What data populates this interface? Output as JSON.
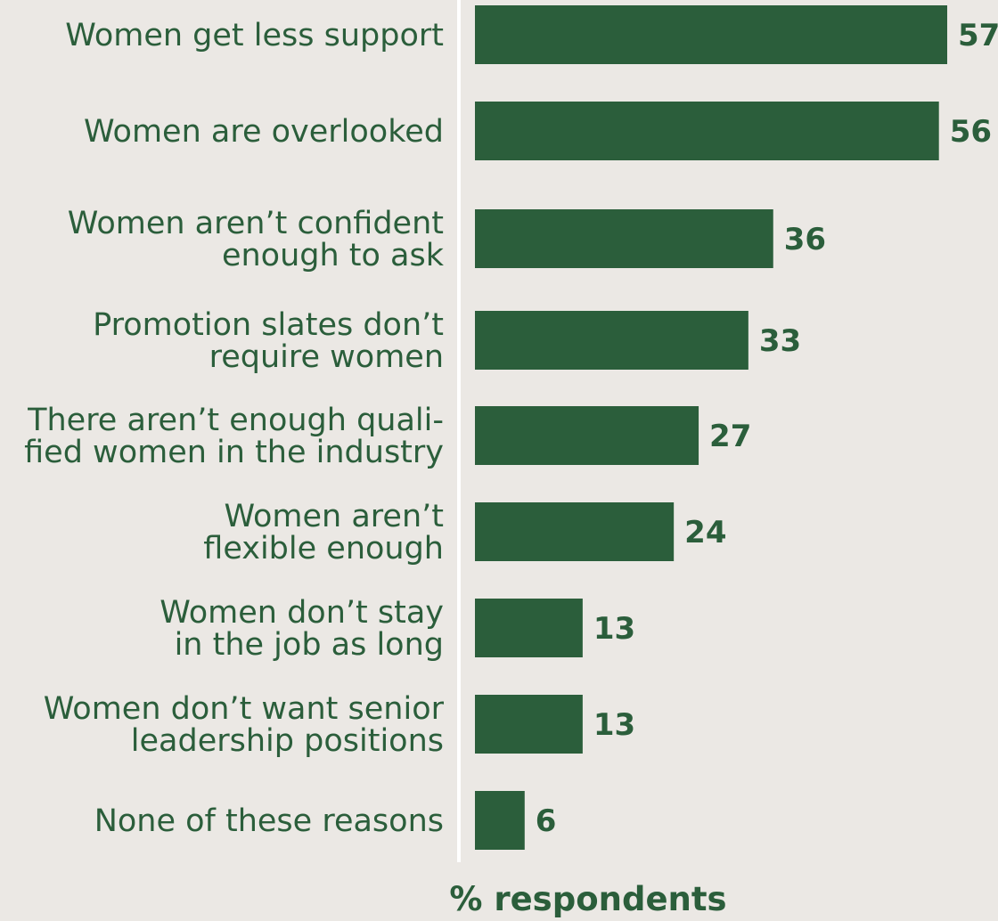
{
  "chart_data": {
    "type": "bar",
    "orientation": "horizontal",
    "categories": [
      [
        "Women get less support"
      ],
      [
        "Women are overlooked"
      ],
      [
        "Women aren’t confident",
        "enough to ask"
      ],
      [
        "Promotion slates don’t",
        "require women"
      ],
      [
        "There aren’t enough quali-",
        "fied women in the industry"
      ],
      [
        "Women aren’t",
        "flexible enough"
      ],
      [
        "Women don’t stay",
        "in the job as long"
      ],
      [
        "Women don’t want senior",
        "leadership positions"
      ],
      [
        "None of these reasons"
      ]
    ],
    "values": [
      57,
      56,
      36,
      33,
      27,
      24,
      13,
      13,
      6
    ],
    "xlabel": "% respondents",
    "xlim": [
      0,
      57
    ],
    "grid": false,
    "legend": "none"
  },
  "colors": {
    "background": "#ebe8e4",
    "bar": "#2b5e3b",
    "text": "#2b5e3b",
    "axis": "#ffffff"
  }
}
